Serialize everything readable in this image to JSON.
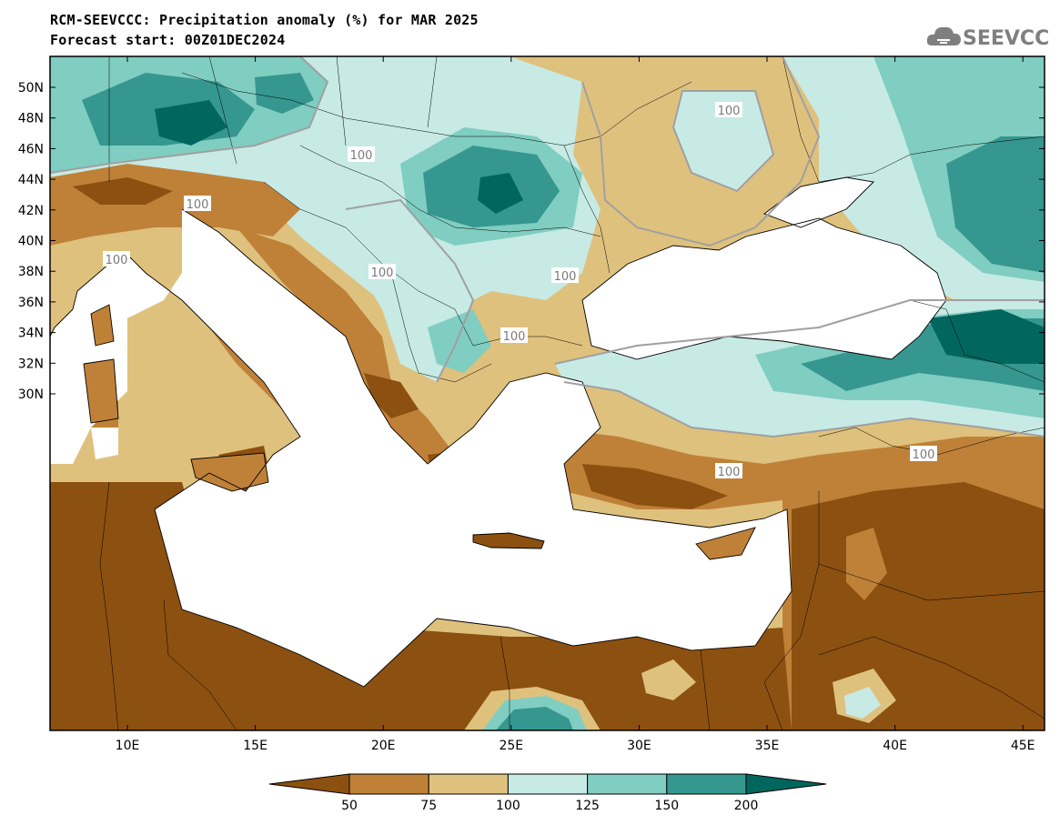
{
  "title_line1": "RCM-SEEVCCC: Precipitation anomaly (%) for MAR 2025",
  "title_line2": "Forecast start: 00Z01DEC2024",
  "logo_text": "SEEVCCC",
  "lat_labels": [
    "50N",
    "48N",
    "46N",
    "44N",
    "42N",
    "40N",
    "38N",
    "36N",
    "34N",
    "32N",
    "30N"
  ],
  "lon_labels": [
    "10E",
    "15E",
    "20E",
    "25E",
    "30E",
    "35E",
    "40E",
    "45E"
  ],
  "contour_label": "100",
  "colorbar": {
    "ticks": [
      "50",
      "75",
      "100",
      "125",
      "150",
      "200"
    ],
    "colors": [
      "#8c5010",
      "#bf8138",
      "#dfc17e",
      "#c7eae5",
      "#80cdc1",
      "#35978f",
      "#01665e"
    ]
  }
}
